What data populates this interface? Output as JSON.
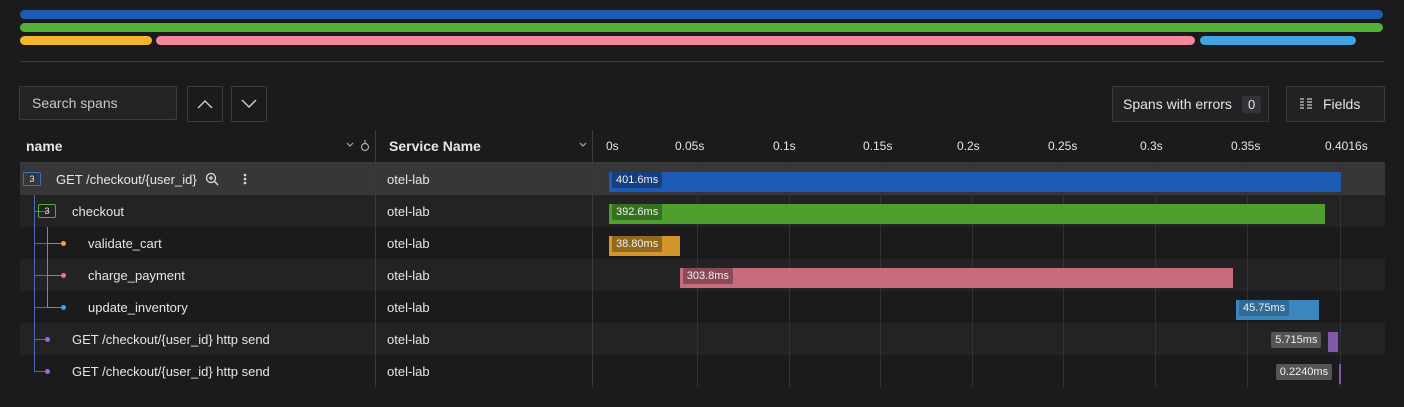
{
  "minimap": {
    "bars": [
      {
        "color": "#1f5bb5",
        "start": 0.0,
        "end": 1.0,
        "row": 0
      },
      {
        "color": "#52b135",
        "start": 0.0,
        "end": 1.0,
        "row": 1
      },
      {
        "color": "#f3b52b",
        "start": 0.0,
        "end": 0.097,
        "row": 2
      },
      {
        "color": "#f3889a",
        "start": 0.1,
        "end": 0.862,
        "row": 2
      },
      {
        "color": "#41a3e0",
        "start": 0.866,
        "end": 0.98,
        "row": 2
      }
    ]
  },
  "toolbar": {
    "search_placeholder": "Search spans",
    "errors_label": "Spans with errors",
    "errors_count": "0",
    "fields_label": "Fields"
  },
  "table": {
    "col_name": "name",
    "col_service": "Service Name",
    "ticks": [
      "0s",
      "0.05s",
      "0.1s",
      "0.15s",
      "0.2s",
      "0.25s",
      "0.3s",
      "0.35s",
      "0.4016s"
    ],
    "total_ms": 401.6,
    "rows": [
      {
        "name": "GET /checkout/{user_id}",
        "service": "otel-lab",
        "depth": 0,
        "badge": "3",
        "badge_color": "#3e70c6",
        "dot_color": "",
        "bar_color": "#1f5bb5",
        "start_ms": 0,
        "duration_ms": 401.6,
        "duration_label": "401.6ms",
        "highlight": true,
        "actions": true
      },
      {
        "name": "checkout",
        "service": "otel-lab",
        "depth": 1,
        "badge": "3",
        "badge_color": "#52b135",
        "dot_color": "",
        "bar_color": "#4e9f2f",
        "start_ms": 0,
        "duration_ms": 392.6,
        "duration_label": "392.6ms",
        "highlight": false,
        "actions": false
      },
      {
        "name": "validate_cart",
        "service": "otel-lab",
        "depth": 2,
        "badge": "",
        "badge_color": "",
        "dot_color": "#e9a72e",
        "bar_color": "#d2962a",
        "start_ms": 0,
        "duration_ms": 38.8,
        "duration_label": "38.80ms",
        "highlight": false,
        "actions": false
      },
      {
        "name": "charge_payment",
        "service": "otel-lab",
        "depth": 2,
        "badge": "",
        "badge_color": "",
        "dot_color": "#e7788a",
        "bar_color": "#c86b7a",
        "start_ms": 38.8,
        "duration_ms": 303.8,
        "duration_label": "303.8ms",
        "highlight": false,
        "actions": false
      },
      {
        "name": "update_inventory",
        "service": "otel-lab",
        "depth": 2,
        "badge": "",
        "badge_color": "",
        "dot_color": "#41a3e0",
        "bar_color": "#3a86bd",
        "start_ms": 344.0,
        "duration_ms": 45.75,
        "duration_label": "45.75ms",
        "highlight": false,
        "actions": false
      },
      {
        "name": "GET /checkout/{user_id} http send",
        "service": "otel-lab",
        "depth": 1,
        "badge": "",
        "badge_color": "",
        "dot_color": "#9a6ad8",
        "bar_color": "#7e5aa8",
        "start_ms": 394.5,
        "duration_ms": 5.715,
        "duration_label": "5.715ms",
        "highlight": false,
        "actions": false
      },
      {
        "name": "GET /checkout/{user_id} http send",
        "service": "otel-lab",
        "depth": 1,
        "badge": "",
        "badge_color": "",
        "dot_color": "#9a6ad8",
        "bar_color": "#7e5aa8",
        "start_ms": 400.5,
        "duration_ms": 0.224,
        "duration_label": "0.2240ms",
        "highlight": false,
        "actions": false
      }
    ]
  }
}
